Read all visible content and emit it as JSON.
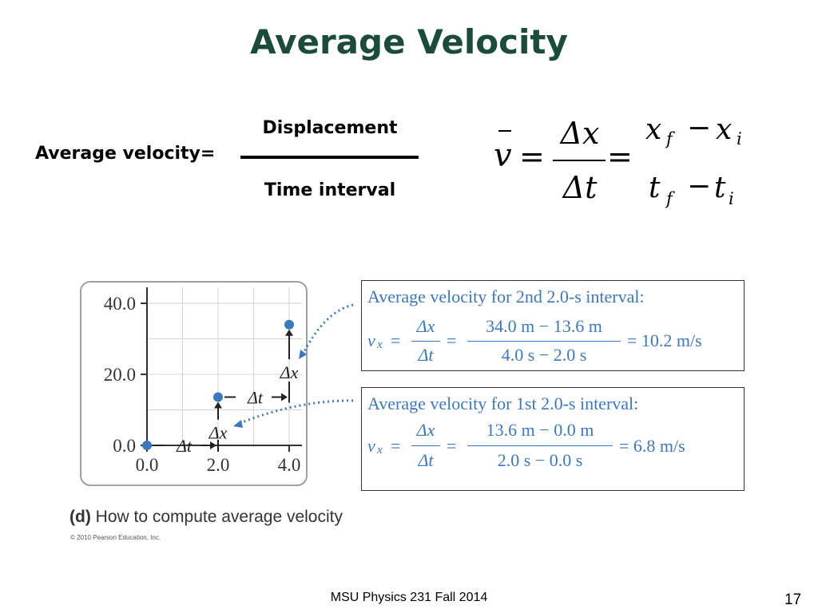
{
  "slide": {
    "title": "Average Velocity",
    "footer": "MSU Physics 231 Fall 2014",
    "page_number": "17"
  },
  "definition": {
    "label": "Average velocity=",
    "numerator": "Displacement",
    "denominator": "Time interval"
  },
  "formula": {
    "v": "v",
    "equals": "=",
    "delta_x": "Δx",
    "delta_t": "Δt",
    "x": "x",
    "t": "t",
    "sub_f": "f",
    "sub_i": "i",
    "minus": "−"
  },
  "figure": {
    "chart_data": {
      "type": "scatter",
      "x": [
        0.0,
        2.0,
        4.0
      ],
      "y": [
        0.0,
        13.6,
        34.0
      ],
      "x_ticks": [
        "0.0",
        "2.0",
        "4.0"
      ],
      "y_ticks": [
        "0.0",
        "20.0",
        "40.0"
      ],
      "xlim": [
        0,
        4.5
      ],
      "ylim": [
        0,
        43
      ],
      "grid": true,
      "point_color": "#3a78c2",
      "annotations": {
        "delta_t": "Δt",
        "delta_x": "Δx"
      }
    },
    "box_second": {
      "title": "Average velocity for 2nd 2.0-s interval:",
      "lhs": "vx",
      "v": "v",
      "sub": "x",
      "delta_x": "Δx",
      "delta_t": "Δt",
      "numerator": "34.0 m − 13.6 m",
      "denominator": "4.0 s − 2.0 s",
      "result": "= 10.2 m/s"
    },
    "box_first": {
      "title": "Average velocity for 1st 2.0-s interval:",
      "v": "v",
      "sub": "x",
      "delta_x": "Δx",
      "delta_t": "Δt",
      "numerator": "13.6 m − 0.0 m",
      "denominator": "2.0 s − 0.0 s",
      "result": "= 6.8 m/s"
    },
    "caption_letter": "(d)",
    "caption_text": "How to compute average velocity",
    "credit": "© 2010 Pearson Education, Inc."
  },
  "colors": {
    "title": "#1b4b3a",
    "figure_blue": "#3a78c2"
  }
}
